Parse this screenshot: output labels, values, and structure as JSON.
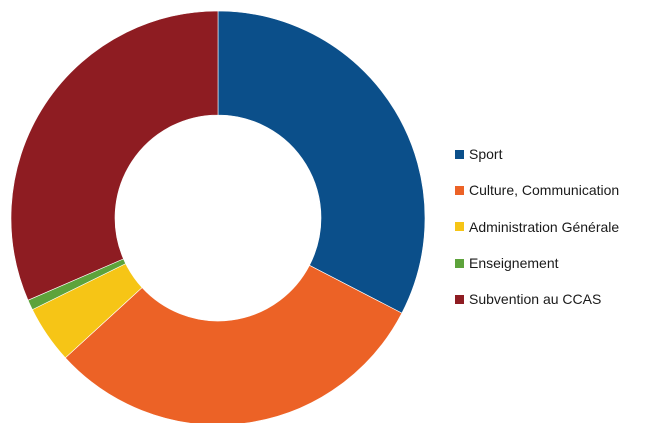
{
  "chart_data": {
    "type": "pie",
    "donut": true,
    "legend_position": "right",
    "categories": [
      "Sport",
      "Culture, Communication",
      "Administration Générale",
      "Enseignement",
      "Subvention au CCAS"
    ],
    "values": [
      32.6,
      30.6,
      4.5,
      0.8,
      31.5
    ],
    "unit": "%",
    "colors": [
      "#0b4f8a",
      "#ec6226",
      "#f6c516",
      "#5da33b",
      "#8e1c22"
    ]
  }
}
